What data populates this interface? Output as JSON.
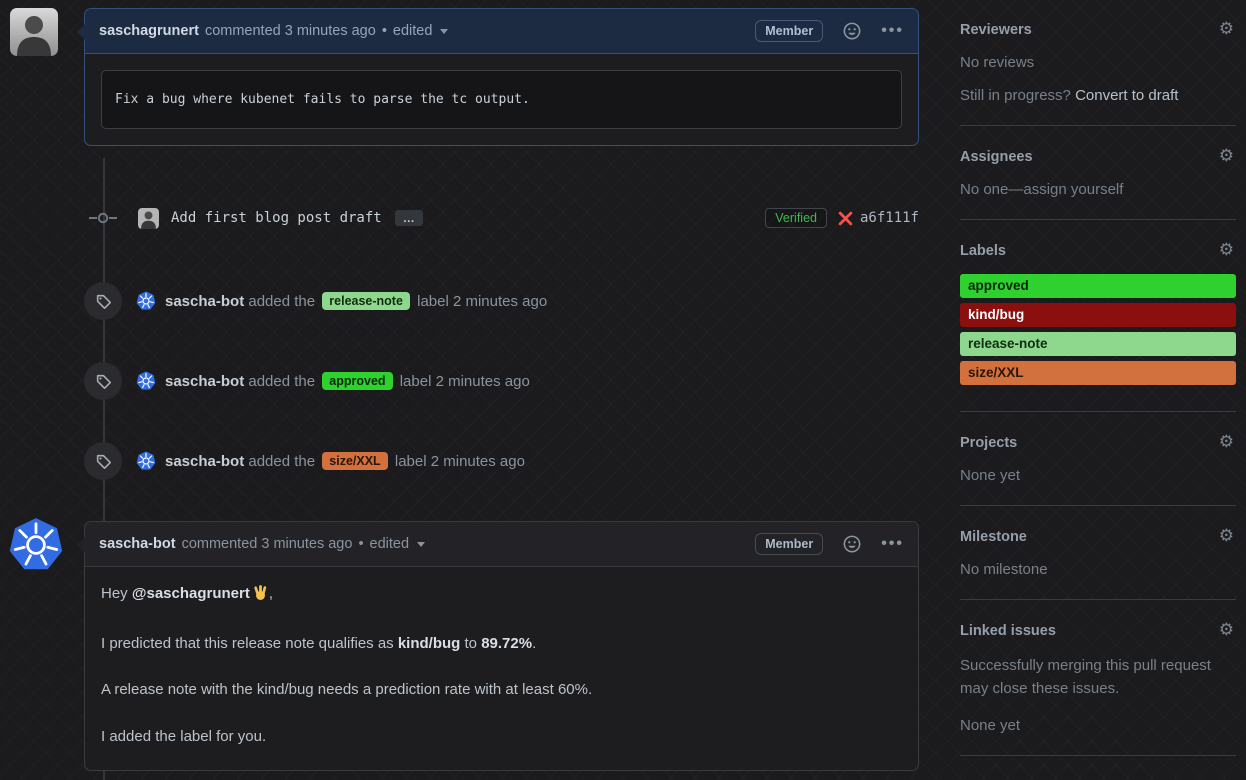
{
  "ui": {
    "dot": "•"
  },
  "comments": [
    {
      "author": "saschagrunert",
      "meta": "commented 3 minutes ago",
      "edited_label": "edited",
      "member_badge": "Member",
      "code_text": "Fix a bug where kubenet fails to parse the tc output."
    },
    {
      "author": "sascha-bot",
      "meta": "commented 3 minutes ago",
      "edited_label": "edited",
      "member_badge": "Member",
      "paragraphs": [
        [
          {
            "t": "Hey "
          },
          {
            "t": "@saschagrunert",
            "b": true
          },
          {
            "icon": "wave"
          },
          {
            "t": ","
          }
        ],
        [
          {
            "t": "I predicted that this release note qualifies as "
          },
          {
            "t": "kind/bug",
            "b": true
          },
          {
            "t": " to "
          },
          {
            "t": "89.72%",
            "b": true
          },
          {
            "t": "."
          }
        ],
        [
          {
            "t": "A release note with the kind/bug needs a prediction rate with at least 60%."
          }
        ],
        [
          {
            "t": "I added the label for you."
          }
        ]
      ]
    }
  ],
  "commit": {
    "message": "Add first blog post draft",
    "expander": "…",
    "verified_badge": "Verified",
    "sha": "a6f111f"
  },
  "label_events": [
    {
      "actor": "sascha-bot",
      "pre": "added the",
      "chip": "release-note",
      "chip_style": "background:#8ed88e;color:#102c10",
      "post": "label 2 minutes ago"
    },
    {
      "actor": "sascha-bot",
      "pre": "added the",
      "chip": "approved",
      "chip_style": "background:#2fd12f;color:#072607",
      "post": "label 2 minutes ago"
    },
    {
      "actor": "sascha-bot",
      "pre": "added the",
      "chip": "size/XXL",
      "chip_style": "background:#d2713e;color:#2b1505",
      "post": "label 2 minutes ago"
    }
  ],
  "sidebar": {
    "reviewers": {
      "title": "Reviewers",
      "empty": "No reviews",
      "hint": "Still in progress? ",
      "hint_link": "Convert to draft"
    },
    "assignees": {
      "title": "Assignees",
      "empty": "No one—assign yourself"
    },
    "labels": {
      "title": "Labels",
      "items": [
        {
          "text": "approved",
          "style": "background:#2fd12f;color:#072607"
        },
        {
          "text": "kind/bug",
          "style": "background:#8c0f0f;color:#ffffff"
        },
        {
          "text": "release-note",
          "style": "background:#8ed88e;color:#102c10"
        },
        {
          "text": "size/XXL",
          "style": "background:#d2713e;color:#2b1505"
        }
      ]
    },
    "projects": {
      "title": "Projects",
      "empty": "None yet"
    },
    "milestone": {
      "title": "Milestone",
      "empty": "No milestone"
    },
    "linked_issues": {
      "title": "Linked issues",
      "description": "Successfully merging this pull request may close these issues.",
      "empty": "None yet"
    }
  },
  "colors": {
    "k8s_blue": "#326ce5",
    "verified_green": "#3fb950",
    "x_red": "#f85149",
    "author_header": "#1d2b42"
  }
}
